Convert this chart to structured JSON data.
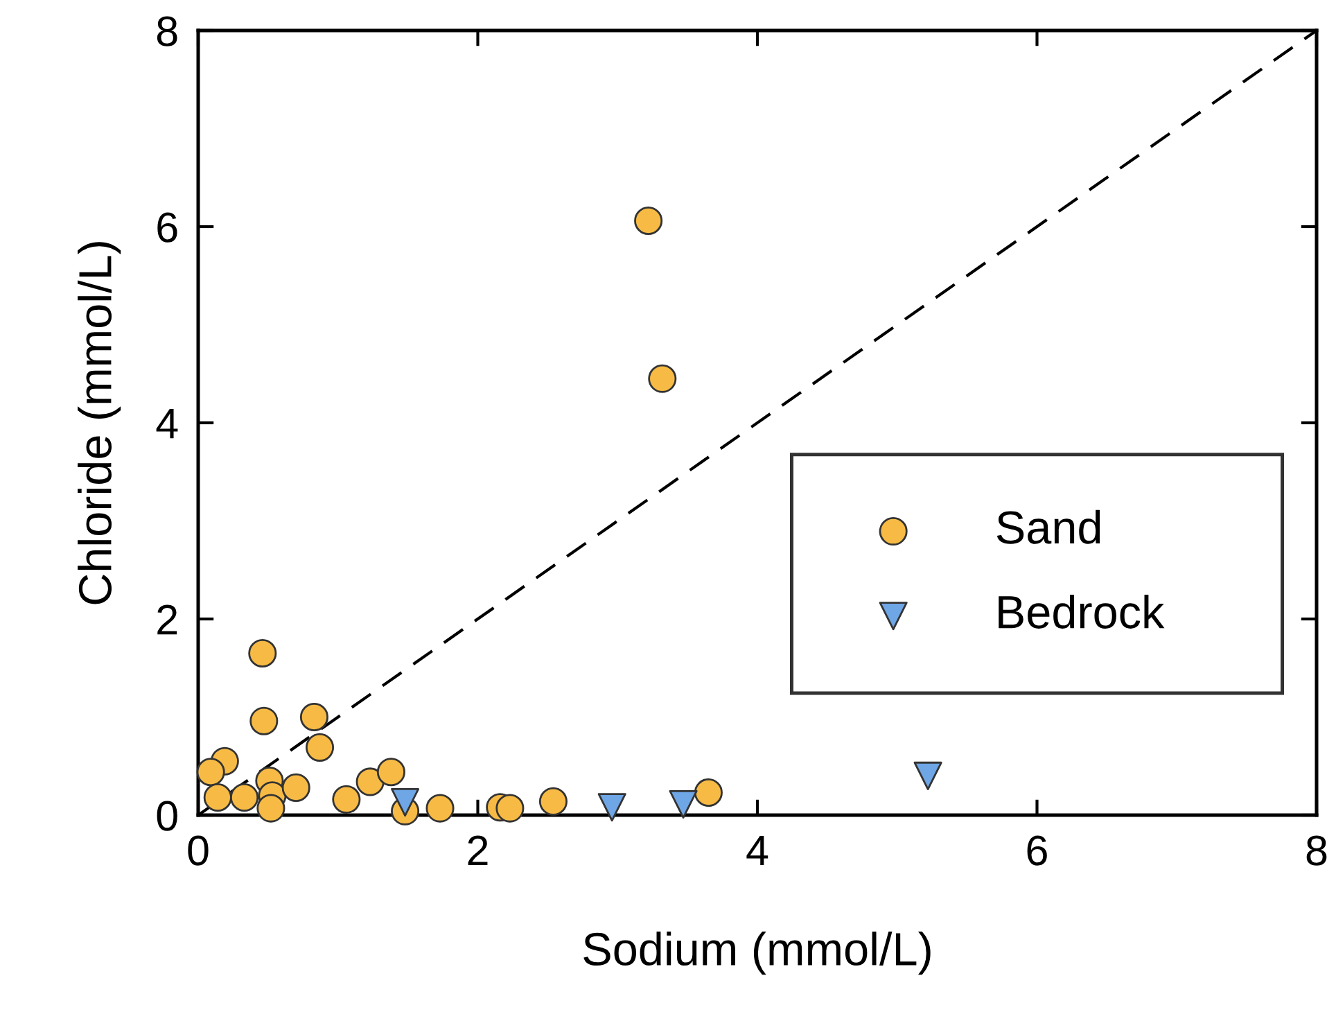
{
  "chart_data": {
    "type": "scatter",
    "xlabel": "Sodium (mmol/L)",
    "ylabel": "Chloride (mmol/L)",
    "xlim": [
      0,
      8
    ],
    "ylim": [
      0,
      8
    ],
    "xticks": [
      0,
      2,
      4,
      6,
      8
    ],
    "yticks": [
      0,
      2,
      4,
      6,
      8
    ],
    "grid": false,
    "legend": "right",
    "series": [
      {
        "name": "Sand",
        "color": "#f7bb45",
        "marker": "circle",
        "x": [
          0.46,
          0.47,
          0.83,
          0.87,
          0.19,
          0.09,
          0.14,
          0.33,
          0.51,
          0.53,
          0.52,
          0.7,
          1.06,
          1.23,
          1.38,
          1.48,
          1.73,
          2.16,
          2.23,
          2.54,
          3.65,
          3.22,
          3.32
        ],
        "values": [
          1.65,
          0.96,
          1.0,
          0.69,
          0.55,
          0.44,
          0.18,
          0.18,
          0.35,
          0.2,
          0.07,
          0.28,
          0.16,
          0.34,
          0.44,
          0.04,
          0.07,
          0.08,
          0.07,
          0.14,
          0.23,
          6.06,
          4.45
        ]
      },
      {
        "name": "Bedrock",
        "color": "#6fa6e6",
        "marker": "triangle",
        "x": [
          1.48,
          2.96,
          3.47,
          5.22
        ],
        "values": [
          0.13,
          0.08,
          0.11,
          0.4
        ]
      },
      {
        "type": "line",
        "color": "#000000",
        "line_style": "dashed",
        "marker": "none",
        "x": [
          0,
          8
        ],
        "values": [
          0,
          8
        ]
      }
    ]
  }
}
